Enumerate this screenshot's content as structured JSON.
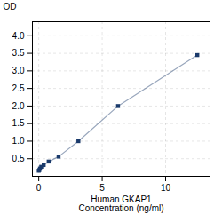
{
  "chart_data": {
    "type": "line",
    "x": [
      0.0,
      0.049,
      0.098,
      0.195,
      0.39,
      0.781,
      1.563,
      3.125,
      6.25,
      12.5
    ],
    "values": [
      0.158,
      0.178,
      0.22,
      0.27,
      0.32,
      0.42,
      0.56,
      1.0,
      2.0,
      3.45
    ],
    "color": "#1a3a6b",
    "marker": "square",
    "xlabel": "Human GKAP1\nConcentration (ng/ml)",
    "ylabel": "OD",
    "xlim": [
      -0.5,
      13.5
    ],
    "ylim": [
      0.0,
      4.4
    ],
    "xticks": [
      0,
      5,
      10
    ],
    "yticks": [
      0.5,
      {
        "value": 1.0,
        "label": "1.0"
      },
      1.5,
      {
        "value": 2.0,
        "label": "2.0"
      },
      2.5,
      {
        "value": 3.0,
        "label": "3.0"
      },
      3.5,
      {
        "value": 4.0,
        "label": "4.0"
      }
    ],
    "grid": true
  }
}
